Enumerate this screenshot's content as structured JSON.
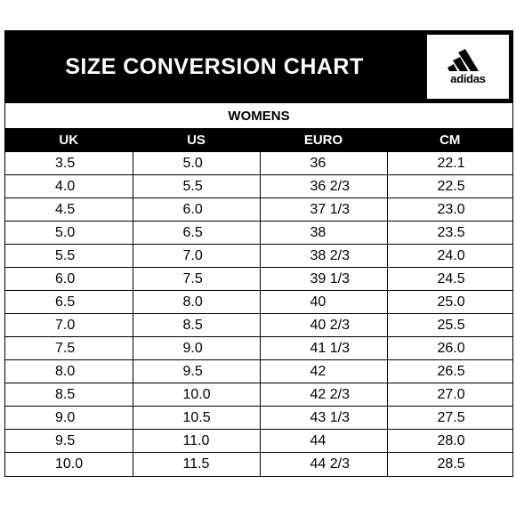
{
  "header": {
    "title": "SIZE CONVERSION CHART",
    "logo": {
      "icon": "adidas-three-stripes-icon",
      "text": "adidas"
    }
  },
  "section": {
    "title": "WOMENS"
  },
  "table": {
    "columns": [
      "UK",
      "US",
      "EURO",
      "CM"
    ],
    "rows": [
      [
        "3.5",
        "5.0",
        "36",
        "22.1"
      ],
      [
        "4.0",
        "5.5",
        "36 2/3",
        "22.5"
      ],
      [
        "4.5",
        "6.0",
        "37 1/3",
        "23.0"
      ],
      [
        "5.0",
        "6.5",
        "38",
        "23.5"
      ],
      [
        "5.5",
        "7.0",
        "38 2/3",
        "24.0"
      ],
      [
        "6.0",
        "7.5",
        "39 1/3",
        "24.5"
      ],
      [
        "6.5",
        "8.0",
        "40",
        "25.0"
      ],
      [
        "7.0",
        "8.5",
        "40 2/3",
        "25.5"
      ],
      [
        "7.5",
        "9.0",
        "41 1/3",
        "26.0"
      ],
      [
        "8.0",
        "9.5",
        "42",
        "26.5"
      ],
      [
        "8.5",
        "10.0",
        "42 2/3",
        "27.0"
      ],
      [
        "9.0",
        "10.5",
        "43 1/3",
        "27.5"
      ],
      [
        "9.5",
        "11.0",
        "44",
        "28.0"
      ],
      [
        "10.0",
        "11.5",
        "44 2/3",
        "28.5"
      ]
    ]
  },
  "colors": {
    "header_bg": "#000000",
    "header_text": "#ffffff",
    "cell_bg": "#ffffff",
    "cell_text": "#000000"
  }
}
